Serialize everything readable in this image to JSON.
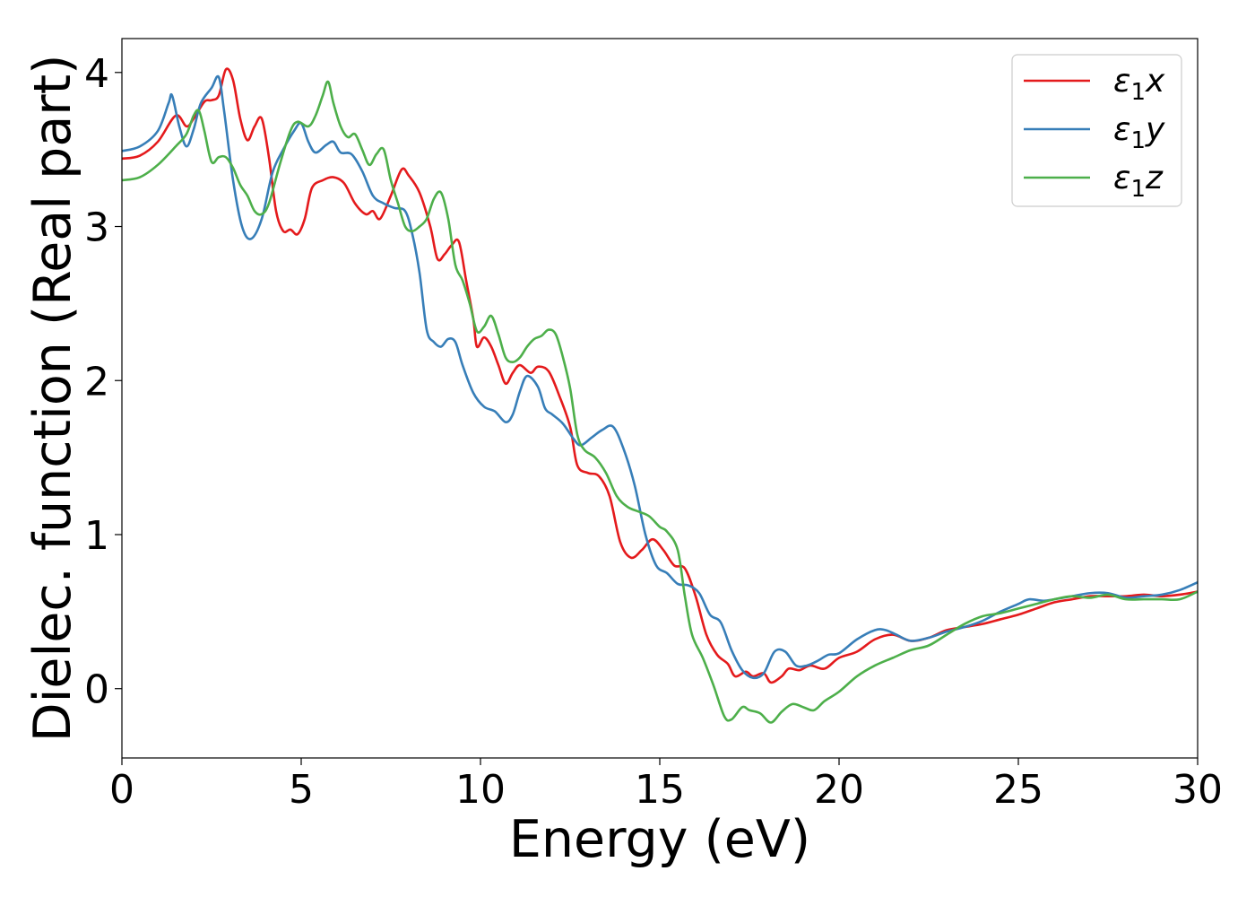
{
  "chart_data": {
    "type": "line",
    "title": "",
    "xlabel": "Energy (eV)",
    "ylabel": "Dielec. function (Real part)",
    "xlim": [
      0,
      30
    ],
    "ylim": [
      -0.45,
      4.22
    ],
    "xticks": [
      0,
      5,
      10,
      15,
      20,
      25,
      30
    ],
    "yticks": [
      0,
      1,
      2,
      3,
      4
    ],
    "xtick_labels": [
      "0",
      "5",
      "10",
      "15",
      "20",
      "25",
      "30"
    ],
    "ytick_labels": [
      "0",
      "1",
      "2",
      "3",
      "4"
    ],
    "grid": false,
    "legend_position": "top-right",
    "colors": {
      "x": "#e41a1c",
      "y": "#377eb8",
      "z": "#4daf4a"
    },
    "series": [
      {
        "name": "ε1x",
        "legend": {
          "symbol": "ε",
          "sub": "1",
          "axis": "x"
        },
        "color": "#e41a1c",
        "points": [
          [
            0,
            3.44
          ],
          [
            0.5,
            3.46
          ],
          [
            1.0,
            3.55
          ],
          [
            1.5,
            3.72
          ],
          [
            1.8,
            3.65
          ],
          [
            2.0,
            3.7
          ],
          [
            2.3,
            3.81
          ],
          [
            2.5,
            3.82
          ],
          [
            2.7,
            3.85
          ],
          [
            2.9,
            4.02
          ],
          [
            3.1,
            3.95
          ],
          [
            3.3,
            3.7
          ],
          [
            3.5,
            3.56
          ],
          [
            3.7,
            3.65
          ],
          [
            3.9,
            3.7
          ],
          [
            4.1,
            3.45
          ],
          [
            4.3,
            3.1
          ],
          [
            4.5,
            2.97
          ],
          [
            4.7,
            2.98
          ],
          [
            4.9,
            2.95
          ],
          [
            5.1,
            3.05
          ],
          [
            5.3,
            3.25
          ],
          [
            5.6,
            3.3
          ],
          [
            5.9,
            3.32
          ],
          [
            6.2,
            3.28
          ],
          [
            6.5,
            3.15
          ],
          [
            6.8,
            3.08
          ],
          [
            7.0,
            3.1
          ],
          [
            7.2,
            3.05
          ],
          [
            7.5,
            3.2
          ],
          [
            7.8,
            3.37
          ],
          [
            8.0,
            3.33
          ],
          [
            8.3,
            3.22
          ],
          [
            8.6,
            3.0
          ],
          [
            8.8,
            2.79
          ],
          [
            9.0,
            2.82
          ],
          [
            9.2,
            2.88
          ],
          [
            9.4,
            2.9
          ],
          [
            9.6,
            2.65
          ],
          [
            9.8,
            2.4
          ],
          [
            9.9,
            2.22
          ],
          [
            10.1,
            2.28
          ],
          [
            10.3,
            2.22
          ],
          [
            10.5,
            2.1
          ],
          [
            10.7,
            1.98
          ],
          [
            10.9,
            2.05
          ],
          [
            11.1,
            2.1
          ],
          [
            11.4,
            2.05
          ],
          [
            11.6,
            2.09
          ],
          [
            11.9,
            2.06
          ],
          [
            12.2,
            1.9
          ],
          [
            12.5,
            1.7
          ],
          [
            12.7,
            1.45
          ],
          [
            13.0,
            1.4
          ],
          [
            13.3,
            1.38
          ],
          [
            13.6,
            1.25
          ],
          [
            13.9,
            0.95
          ],
          [
            14.2,
            0.85
          ],
          [
            14.5,
            0.9
          ],
          [
            14.8,
            0.97
          ],
          [
            15.1,
            0.9
          ],
          [
            15.4,
            0.8
          ],
          [
            15.7,
            0.78
          ],
          [
            16.0,
            0.6
          ],
          [
            16.3,
            0.35
          ],
          [
            16.6,
            0.22
          ],
          [
            16.9,
            0.16
          ],
          [
            17.1,
            0.08
          ],
          [
            17.4,
            0.11
          ],
          [
            17.6,
            0.08
          ],
          [
            17.9,
            0.1
          ],
          [
            18.1,
            0.04
          ],
          [
            18.4,
            0.08
          ],
          [
            18.6,
            0.13
          ],
          [
            18.9,
            0.12
          ],
          [
            19.2,
            0.15
          ],
          [
            19.6,
            0.13
          ],
          [
            20.0,
            0.2
          ],
          [
            20.5,
            0.24
          ],
          [
            21.0,
            0.32
          ],
          [
            21.5,
            0.35
          ],
          [
            22.0,
            0.31
          ],
          [
            22.5,
            0.33
          ],
          [
            23.0,
            0.38
          ],
          [
            23.5,
            0.4
          ],
          [
            24.0,
            0.42
          ],
          [
            24.5,
            0.45
          ],
          [
            25.0,
            0.48
          ],
          [
            25.5,
            0.52
          ],
          [
            26.0,
            0.56
          ],
          [
            26.5,
            0.58
          ],
          [
            27.0,
            0.6
          ],
          [
            27.5,
            0.6
          ],
          [
            28.0,
            0.6
          ],
          [
            28.5,
            0.61
          ],
          [
            29.0,
            0.6
          ],
          [
            29.5,
            0.61
          ],
          [
            30.0,
            0.63
          ]
        ]
      },
      {
        "name": "ε1y",
        "legend": {
          "symbol": "ε",
          "sub": "1",
          "axis": "y"
        },
        "color": "#377eb8",
        "points": [
          [
            0,
            3.49
          ],
          [
            0.5,
            3.52
          ],
          [
            1.0,
            3.62
          ],
          [
            1.3,
            3.8
          ],
          [
            1.4,
            3.85
          ],
          [
            1.6,
            3.65
          ],
          [
            1.8,
            3.52
          ],
          [
            2.0,
            3.63
          ],
          [
            2.2,
            3.8
          ],
          [
            2.5,
            3.9
          ],
          [
            2.7,
            3.97
          ],
          [
            2.85,
            3.75
          ],
          [
            3.1,
            3.3
          ],
          [
            3.35,
            3.0
          ],
          [
            3.6,
            2.92
          ],
          [
            3.9,
            3.05
          ],
          [
            4.2,
            3.35
          ],
          [
            4.5,
            3.5
          ],
          [
            4.8,
            3.62
          ],
          [
            5.0,
            3.67
          ],
          [
            5.2,
            3.55
          ],
          [
            5.4,
            3.48
          ],
          [
            5.7,
            3.53
          ],
          [
            5.9,
            3.55
          ],
          [
            6.1,
            3.48
          ],
          [
            6.4,
            3.47
          ],
          [
            6.7,
            3.36
          ],
          [
            7.0,
            3.2
          ],
          [
            7.3,
            3.15
          ],
          [
            7.6,
            3.12
          ],
          [
            7.9,
            3.1
          ],
          [
            8.1,
            2.95
          ],
          [
            8.3,
            2.7
          ],
          [
            8.5,
            2.33
          ],
          [
            8.7,
            2.25
          ],
          [
            8.9,
            2.22
          ],
          [
            9.1,
            2.27
          ],
          [
            9.3,
            2.25
          ],
          [
            9.5,
            2.1
          ],
          [
            9.8,
            1.92
          ],
          [
            10.1,
            1.83
          ],
          [
            10.4,
            1.8
          ],
          [
            10.7,
            1.73
          ],
          [
            10.9,
            1.78
          ],
          [
            11.1,
            1.93
          ],
          [
            11.3,
            2.03
          ],
          [
            11.6,
            1.96
          ],
          [
            11.8,
            1.82
          ],
          [
            12.0,
            1.78
          ],
          [
            12.3,
            1.72
          ],
          [
            12.6,
            1.62
          ],
          [
            12.8,
            1.58
          ],
          [
            13.1,
            1.63
          ],
          [
            13.4,
            1.68
          ],
          [
            13.7,
            1.7
          ],
          [
            14.0,
            1.55
          ],
          [
            14.3,
            1.32
          ],
          [
            14.6,
            1.0
          ],
          [
            14.9,
            0.8
          ],
          [
            15.2,
            0.75
          ],
          [
            15.5,
            0.68
          ],
          [
            15.8,
            0.67
          ],
          [
            16.1,
            0.62
          ],
          [
            16.4,
            0.48
          ],
          [
            16.7,
            0.43
          ],
          [
            17.0,
            0.25
          ],
          [
            17.3,
            0.12
          ],
          [
            17.6,
            0.07
          ],
          [
            17.9,
            0.1
          ],
          [
            18.2,
            0.24
          ],
          [
            18.5,
            0.24
          ],
          [
            18.8,
            0.15
          ],
          [
            19.1,
            0.15
          ],
          [
            19.4,
            0.18
          ],
          [
            19.7,
            0.22
          ],
          [
            20.0,
            0.23
          ],
          [
            20.5,
            0.32
          ],
          [
            21.0,
            0.38
          ],
          [
            21.3,
            0.38
          ],
          [
            21.6,
            0.35
          ],
          [
            22.0,
            0.31
          ],
          [
            22.5,
            0.33
          ],
          [
            23.0,
            0.37
          ],
          [
            23.5,
            0.4
          ],
          [
            24.0,
            0.44
          ],
          [
            24.5,
            0.5
          ],
          [
            25.0,
            0.55
          ],
          [
            25.3,
            0.58
          ],
          [
            25.7,
            0.57
          ],
          [
            26.0,
            0.58
          ],
          [
            26.5,
            0.6
          ],
          [
            27.0,
            0.62
          ],
          [
            27.5,
            0.62
          ],
          [
            28.0,
            0.59
          ],
          [
            28.5,
            0.6
          ],
          [
            29.0,
            0.61
          ],
          [
            29.5,
            0.64
          ],
          [
            30.0,
            0.69
          ]
        ]
      },
      {
        "name": "ε1z",
        "legend": {
          "symbol": "ε",
          "sub": "1",
          "axis": "z"
        },
        "color": "#4daf4a",
        "points": [
          [
            0,
            3.3
          ],
          [
            0.5,
            3.32
          ],
          [
            1.0,
            3.4
          ],
          [
            1.5,
            3.52
          ],
          [
            1.8,
            3.6
          ],
          [
            2.0,
            3.72
          ],
          [
            2.15,
            3.75
          ],
          [
            2.3,
            3.62
          ],
          [
            2.5,
            3.42
          ],
          [
            2.7,
            3.45
          ],
          [
            2.9,
            3.45
          ],
          [
            3.1,
            3.38
          ],
          [
            3.3,
            3.27
          ],
          [
            3.5,
            3.2
          ],
          [
            3.7,
            3.1
          ],
          [
            3.9,
            3.08
          ],
          [
            4.1,
            3.15
          ],
          [
            4.4,
            3.4
          ],
          [
            4.7,
            3.62
          ],
          [
            4.9,
            3.68
          ],
          [
            5.2,
            3.65
          ],
          [
            5.4,
            3.72
          ],
          [
            5.6,
            3.85
          ],
          [
            5.75,
            3.94
          ],
          [
            5.9,
            3.8
          ],
          [
            6.1,
            3.65
          ],
          [
            6.3,
            3.58
          ],
          [
            6.5,
            3.6
          ],
          [
            6.7,
            3.5
          ],
          [
            6.9,
            3.4
          ],
          [
            7.1,
            3.47
          ],
          [
            7.3,
            3.5
          ],
          [
            7.5,
            3.3
          ],
          [
            7.7,
            3.15
          ],
          [
            7.9,
            3.0
          ],
          [
            8.1,
            2.97
          ],
          [
            8.3,
            3.0
          ],
          [
            8.5,
            3.05
          ],
          [
            8.7,
            3.18
          ],
          [
            8.9,
            3.22
          ],
          [
            9.1,
            3.05
          ],
          [
            9.3,
            2.75
          ],
          [
            9.5,
            2.65
          ],
          [
            9.7,
            2.5
          ],
          [
            9.9,
            2.32
          ],
          [
            10.1,
            2.35
          ],
          [
            10.3,
            2.42
          ],
          [
            10.5,
            2.3
          ],
          [
            10.7,
            2.15
          ],
          [
            10.9,
            2.12
          ],
          [
            11.1,
            2.15
          ],
          [
            11.3,
            2.22
          ],
          [
            11.5,
            2.27
          ],
          [
            11.7,
            2.29
          ],
          [
            11.9,
            2.33
          ],
          [
            12.1,
            2.3
          ],
          [
            12.3,
            2.15
          ],
          [
            12.5,
            1.95
          ],
          [
            12.7,
            1.65
          ],
          [
            12.9,
            1.55
          ],
          [
            13.2,
            1.5
          ],
          [
            13.5,
            1.4
          ],
          [
            13.8,
            1.25
          ],
          [
            14.1,
            1.18
          ],
          [
            14.4,
            1.15
          ],
          [
            14.7,
            1.12
          ],
          [
            15.0,
            1.05
          ],
          [
            15.2,
            1.02
          ],
          [
            15.5,
            0.9
          ],
          [
            15.7,
            0.6
          ],
          [
            15.9,
            0.35
          ],
          [
            16.2,
            0.2
          ],
          [
            16.5,
            0.02
          ],
          [
            16.8,
            -0.18
          ],
          [
            17.0,
            -0.2
          ],
          [
            17.3,
            -0.12
          ],
          [
            17.5,
            -0.14
          ],
          [
            17.8,
            -0.16
          ],
          [
            18.1,
            -0.22
          ],
          [
            18.4,
            -0.15
          ],
          [
            18.7,
            -0.1
          ],
          [
            19.0,
            -0.12
          ],
          [
            19.3,
            -0.14
          ],
          [
            19.6,
            -0.08
          ],
          [
            20.0,
            -0.02
          ],
          [
            20.5,
            0.08
          ],
          [
            21.0,
            0.15
          ],
          [
            21.5,
            0.2
          ],
          [
            22.0,
            0.25
          ],
          [
            22.5,
            0.28
          ],
          [
            23.0,
            0.35
          ],
          [
            23.5,
            0.42
          ],
          [
            24.0,
            0.47
          ],
          [
            24.5,
            0.49
          ],
          [
            25.0,
            0.52
          ],
          [
            25.5,
            0.55
          ],
          [
            26.0,
            0.58
          ],
          [
            26.5,
            0.6
          ],
          [
            27.0,
            0.59
          ],
          [
            27.5,
            0.61
          ],
          [
            28.0,
            0.58
          ],
          [
            28.5,
            0.58
          ],
          [
            29.0,
            0.58
          ],
          [
            29.5,
            0.58
          ],
          [
            30.0,
            0.63
          ]
        ]
      }
    ]
  }
}
